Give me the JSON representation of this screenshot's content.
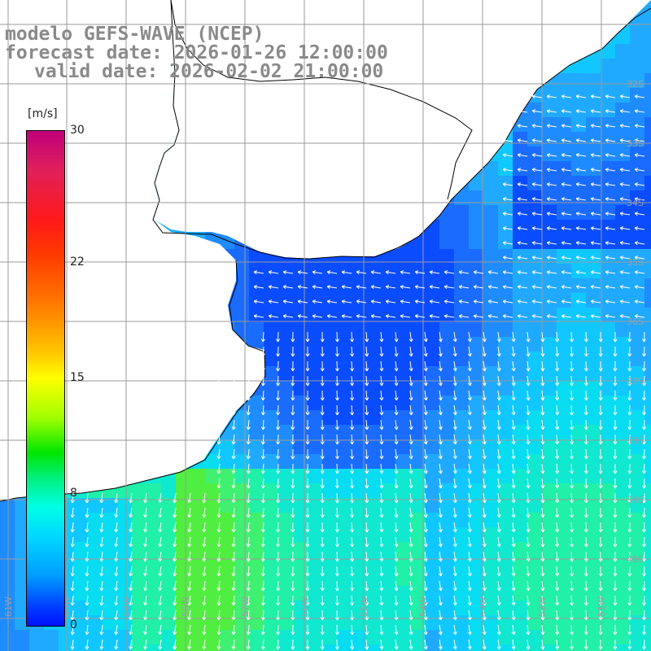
{
  "title": {
    "line1": "modelo GEFS-WAVE (NCEP)",
    "line2": "forecast date: 2026-01-26 12:00:00",
    "line3": "valid date: 2026-02-02 21:00:00"
  },
  "colorbar": {
    "unit": "[m/s]",
    "ticks": [
      {
        "label": "30",
        "value": 30
      },
      {
        "label": "22",
        "value": 22
      },
      {
        "label": "15",
        "value": 15
      },
      {
        "label": "8",
        "value": 8
      },
      {
        "label": "0",
        "value": 0
      }
    ],
    "range": [
      0,
      30
    ]
  },
  "lat_labels": [
    "32S",
    "33S",
    "34S",
    "35S",
    "36S",
    "37S",
    "38S",
    "39S",
    "40S"
  ],
  "lon_labels": [
    "61W",
    "60W",
    "59W",
    "58W",
    "57W",
    "56W",
    "55W",
    "54W",
    "53W",
    "52W",
    "51W"
  ],
  "colors": {
    "grid": "#9a9a9a",
    "coast": "#000000",
    "arrow": "#ffffff",
    "title": "#8a8a8a",
    "label": "#9aa0a6"
  }
}
